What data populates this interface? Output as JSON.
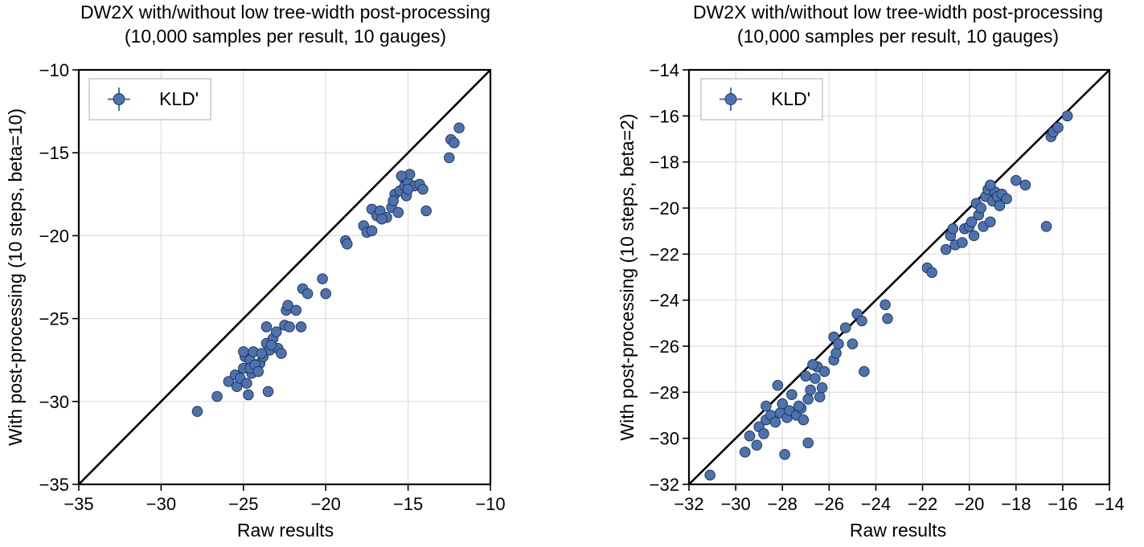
{
  "chart_data": [
    {
      "type": "scatter",
      "title": "DW2X with/without low tree-width post-processing",
      "subtitle": "(10,000 samples per result, 10 gauges)",
      "xlabel": "Raw results",
      "ylabel": "With post-processing (10 steps, beta=10)",
      "xlim": [
        -35,
        -10
      ],
      "ylim": [
        -35,
        -10
      ],
      "xticks": [
        -35,
        -30,
        -25,
        -20,
        -15,
        -10
      ],
      "yticks": [
        -35,
        -30,
        -25,
        -20,
        -15,
        -10
      ],
      "xtick_labels": [
        "−35",
        "−30",
        "−25",
        "−20",
        "−15",
        "−10"
      ],
      "ytick_labels": [
        "−35",
        "−30",
        "−25",
        "−20",
        "−15",
        "−10"
      ],
      "grid": true,
      "legend": {
        "location": "top-left",
        "entries": [
          "KLD'"
        ]
      },
      "reference_line": "y = x",
      "series": [
        {
          "name": "KLD'",
          "color": "#4c72b0",
          "points": [
            [
              -27.8,
              -30.6
            ],
            [
              -26.6,
              -29.7
            ],
            [
              -25.9,
              -28.8
            ],
            [
              -25.5,
              -28.4
            ],
            [
              -25.4,
              -29.1
            ],
            [
              -25.2,
              -28.6
            ],
            [
              -25.0,
              -28.0
            ],
            [
              -24.9,
              -27.3
            ],
            [
              -24.8,
              -28.9
            ],
            [
              -24.7,
              -29.6
            ],
            [
              -25.0,
              -27.0
            ],
            [
              -24.6,
              -27.5
            ],
            [
              -24.5,
              -28.3
            ],
            [
              -24.4,
              -27.0
            ],
            [
              -24.2,
              -28.0
            ],
            [
              -24.0,
              -27.7
            ],
            [
              -23.8,
              -27.3
            ],
            [
              -24.6,
              -28.0
            ],
            [
              -23.6,
              -25.5
            ],
            [
              -23.5,
              -29.4
            ],
            [
              -23.6,
              -26.5
            ],
            [
              -23.4,
              -26.9
            ],
            [
              -23.2,
              -26.2
            ],
            [
              -23.0,
              -25.8
            ],
            [
              -22.9,
              -26.8
            ],
            [
              -22.7,
              -27.1
            ],
            [
              -22.5,
              -25.4
            ],
            [
              -22.4,
              -24.5
            ],
            [
              -22.3,
              -24.2
            ],
            [
              -22.2,
              -25.5
            ],
            [
              -21.8,
              -24.5
            ],
            [
              -21.5,
              -25.5
            ],
            [
              -21.4,
              -23.2
            ],
            [
              -21.1,
              -23.5
            ],
            [
              -20.2,
              -22.6
            ],
            [
              -20.0,
              -23.5
            ],
            [
              -18.8,
              -20.3
            ],
            [
              -18.7,
              -20.5
            ],
            [
              -17.7,
              -19.4
            ],
            [
              -17.5,
              -19.8
            ],
            [
              -17.2,
              -19.7
            ],
            [
              -17.2,
              -18.4
            ],
            [
              -16.9,
              -18.8
            ],
            [
              -16.7,
              -18.5
            ],
            [
              -16.3,
              -18.9
            ],
            [
              -16.0,
              -18.3
            ],
            [
              -15.8,
              -17.5
            ],
            [
              -15.6,
              -18.6
            ],
            [
              -15.5,
              -17.3
            ],
            [
              -15.3,
              -16.5
            ],
            [
              -15.2,
              -17.0
            ],
            [
              -15.1,
              -17.6
            ],
            [
              -15.0,
              -16.8
            ],
            [
              -14.9,
              -16.3
            ],
            [
              -14.6,
              -17.0
            ],
            [
              -14.3,
              -16.9
            ],
            [
              -14.1,
              -17.2
            ],
            [
              -13.9,
              -18.5
            ],
            [
              -15.4,
              -16.4
            ],
            [
              -15.0,
              -17.2
            ],
            [
              -12.5,
              -15.3
            ],
            [
              -12.4,
              -14.2
            ],
            [
              -12.2,
              -14.4
            ],
            [
              -11.9,
              -13.5
            ],
            [
              -24.3,
              -27.8
            ],
            [
              -23.9,
              -27.1
            ],
            [
              -23.3,
              -26.6
            ],
            [
              -15.9,
              -17.9
            ],
            [
              -16.6,
              -19.0
            ],
            [
              -24.1,
              -28.2
            ]
          ]
        }
      ]
    },
    {
      "type": "scatter",
      "title": "DW2X with/without low tree-width post-processing",
      "subtitle": "(10,000 samples per result, 10 gauges)",
      "xlabel": "Raw results",
      "ylabel": "With post-processing (10 steps, beta=2)",
      "xlim": [
        -32,
        -14
      ],
      "ylim": [
        -32,
        -14
      ],
      "xticks": [
        -32,
        -30,
        -28,
        -26,
        -24,
        -22,
        -20,
        -18,
        -16,
        -14
      ],
      "yticks": [
        -32,
        -30,
        -28,
        -26,
        -24,
        -22,
        -20,
        -18,
        -16,
        -14
      ],
      "xtick_labels": [
        "−32",
        "−30",
        "−28",
        "−26",
        "−24",
        "−22",
        "−20",
        "−18",
        "−16",
        "−14"
      ],
      "ytick_labels": [
        "−32",
        "−30",
        "−28",
        "−26",
        "−24",
        "−22",
        "−20",
        "−18",
        "−16",
        "−14"
      ],
      "grid": true,
      "legend": {
        "location": "top-left",
        "entries": [
          "KLD'"
        ]
      },
      "reference_line": "y = x",
      "series": [
        {
          "name": "KLD'",
          "color": "#4c72b0",
          "points": [
            [
              -31.1,
              -31.6
            ],
            [
              -29.6,
              -30.6
            ],
            [
              -29.4,
              -29.9
            ],
            [
              -29.1,
              -30.3
            ],
            [
              -29.0,
              -29.5
            ],
            [
              -28.8,
              -29.8
            ],
            [
              -28.7,
              -29.2
            ],
            [
              -28.7,
              -28.6
            ],
            [
              -28.5,
              -29.0
            ],
            [
              -28.3,
              -29.3
            ],
            [
              -28.2,
              -27.7
            ],
            [
              -28.1,
              -28.9
            ],
            [
              -28.0,
              -28.5
            ],
            [
              -27.9,
              -30.7
            ],
            [
              -27.8,
              -29.1
            ],
            [
              -27.7,
              -28.8
            ],
            [
              -27.6,
              -28.1
            ],
            [
              -27.4,
              -29.0
            ],
            [
              -27.2,
              -28.7
            ],
            [
              -27.1,
              -29.2
            ],
            [
              -27.0,
              -27.3
            ],
            [
              -26.9,
              -28.3
            ],
            [
              -26.9,
              -30.2
            ],
            [
              -26.8,
              -27.9
            ],
            [
              -26.6,
              -27.4
            ],
            [
              -26.5,
              -26.9
            ],
            [
              -26.4,
              -28.2
            ],
            [
              -26.3,
              -27.8
            ],
            [
              -26.2,
              -27.1
            ],
            [
              -25.8,
              -26.6
            ],
            [
              -25.7,
              -26.3
            ],
            [
              -25.8,
              -25.6
            ],
            [
              -25.6,
              -25.9
            ],
            [
              -25.3,
              -25.2
            ],
            [
              -25.0,
              -25.9
            ],
            [
              -24.8,
              -24.6
            ],
            [
              -24.6,
              -24.9
            ],
            [
              -24.5,
              -27.1
            ],
            [
              -23.6,
              -24.2
            ],
            [
              -23.5,
              -24.8
            ],
            [
              -21.8,
              -22.6
            ],
            [
              -21.6,
              -22.8
            ],
            [
              -21.0,
              -21.8
            ],
            [
              -20.8,
              -21.2
            ],
            [
              -20.7,
              -20.9
            ],
            [
              -20.6,
              -21.6
            ],
            [
              -20.3,
              -21.5
            ],
            [
              -20.2,
              -20.9
            ],
            [
              -20.0,
              -20.8
            ],
            [
              -19.9,
              -20.6
            ],
            [
              -19.8,
              -21.2
            ],
            [
              -19.7,
              -19.8
            ],
            [
              -19.6,
              -20.3
            ],
            [
              -19.5,
              -20.0
            ],
            [
              -19.4,
              -20.8
            ],
            [
              -19.3,
              -19.5
            ],
            [
              -19.2,
              -19.2
            ],
            [
              -19.1,
              -20.6
            ],
            [
              -19.0,
              -19.7
            ],
            [
              -18.9,
              -19.3
            ],
            [
              -18.8,
              -19.5
            ],
            [
              -18.7,
              -19.9
            ],
            [
              -18.6,
              -19.4
            ],
            [
              -18.4,
              -19.6
            ],
            [
              -18.0,
              -18.8
            ],
            [
              -17.6,
              -19.0
            ],
            [
              -16.7,
              -20.8
            ],
            [
              -16.5,
              -16.9
            ],
            [
              -16.4,
              -16.7
            ],
            [
              -16.2,
              -16.5
            ],
            [
              -15.8,
              -16.0
            ],
            [
              -26.7,
              -26.8
            ],
            [
              -27.3,
              -28.6
            ],
            [
              -19.1,
              -19.0
            ]
          ]
        }
      ]
    }
  ]
}
